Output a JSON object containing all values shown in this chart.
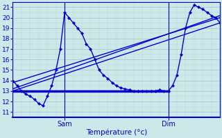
{
  "xlabel": "Température (°c)",
  "bg_color": "#cce8e8",
  "grid_color_major": "#a0c8c8",
  "grid_color_minor": "#b8d8d8",
  "line_color": "#0000cc",
  "ylim": [
    10.5,
    21.5
  ],
  "xlim": [
    0,
    48
  ],
  "yticks": [
    11,
    12,
    13,
    14,
    15,
    16,
    17,
    18,
    19,
    20,
    21
  ],
  "vlines_x": [
    12,
    36
  ],
  "vline_labels": [
    "Sam",
    "Dim"
  ],
  "curve": {
    "x": [
      0,
      1,
      2,
      3,
      4,
      5,
      6,
      7,
      8,
      9,
      10,
      11,
      12,
      13,
      14,
      15,
      16,
      17,
      18,
      19,
      20,
      21,
      22,
      23,
      24,
      25,
      26,
      27,
      28,
      29,
      30,
      31,
      32,
      33,
      34,
      35,
      36,
      37,
      38,
      39,
      40,
      41,
      42,
      43,
      44,
      45,
      46,
      47,
      48
    ],
    "y": [
      14.0,
      13.5,
      13.0,
      12.7,
      12.5,
      12.2,
      11.8,
      11.6,
      12.5,
      13.5,
      15.0,
      17.0,
      20.5,
      20.0,
      19.5,
      19.0,
      18.5,
      17.5,
      17.0,
      16.0,
      15.0,
      14.5,
      14.2,
      13.8,
      13.5,
      13.3,
      13.2,
      13.1,
      13.0,
      13.0,
      13.0,
      13.0,
      13.0,
      13.0,
      13.1,
      13.0,
      13.0,
      13.5,
      14.5,
      16.5,
      19.0,
      20.5,
      21.2,
      21.0,
      20.8,
      20.5,
      20.2,
      20.0,
      19.5
    ]
  },
  "line1": {
    "x": [
      0,
      48
    ],
    "y": [
      13.0,
      19.5
    ],
    "lw": 1.0
  },
  "line2": {
    "x": [
      0,
      48
    ],
    "y": [
      13.2,
      20.2
    ],
    "lw": 1.0
  },
  "line3": {
    "x": [
      0,
      48
    ],
    "y": [
      13.8,
      20.0
    ],
    "lw": 1.0
  },
  "flat": {
    "x": [
      0,
      36
    ],
    "y": [
      13.0,
      13.0
    ],
    "lw": 2.5
  }
}
